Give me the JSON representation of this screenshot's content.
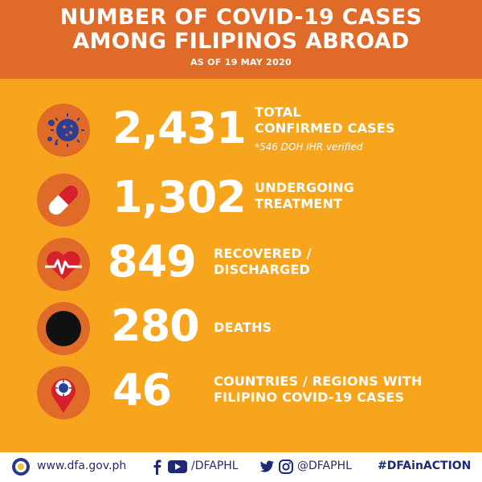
{
  "header": {
    "title": "NUMBER OF COVID-19 CASES\nAMONG FILIPINOS ABROAD",
    "subtitle": "AS OF 19 MAY 2020"
  },
  "stats": [
    {
      "icon": "virus-icon",
      "value": "2,431",
      "label": "TOTAL\nCONFIRMED CASES",
      "note": "*546 DOH IHR verified"
    },
    {
      "icon": "pill-capsule-icon",
      "value": "1,302",
      "label": "UNDERGOING\nTREATMENT"
    },
    {
      "icon": "heart-pulse-icon",
      "value": "849",
      "label": "RECOVERED /\nDISCHARGED"
    },
    {
      "icon": "black-circle-icon",
      "value": "280",
      "label": "DEATHS"
    },
    {
      "icon": "map-pin-virus-icon",
      "value": "46",
      "label": "COUNTRIES / REGIONS WITH\nFILIPINO COVID-19 CASES"
    }
  ],
  "footer": {
    "website": "www.dfa.gov.ph",
    "facebook_youtube_handle": "/DFAPHL",
    "twitter_instagram_handle": "@DFAPHL",
    "hashtag": "#DFAinACTION"
  },
  "colors": {
    "background": "#f7a51c",
    "header": "#e06a27",
    "icon_circle": "#e06a27",
    "accent_red": "#d8202c",
    "accent_blue": "#2b3f96"
  }
}
